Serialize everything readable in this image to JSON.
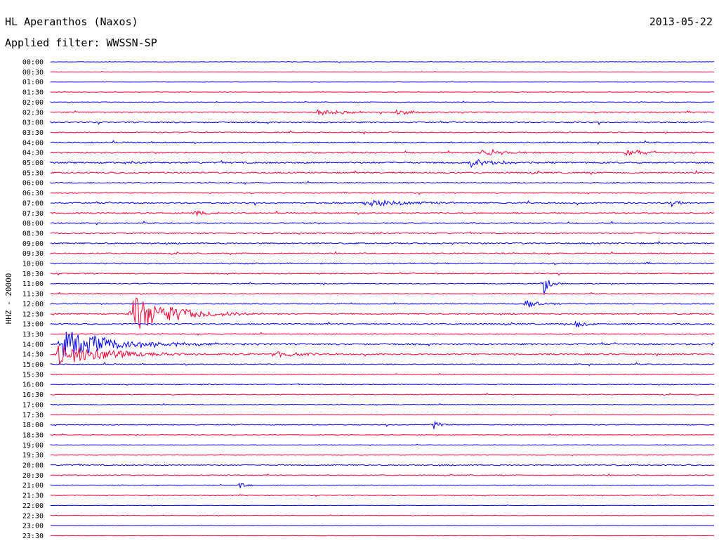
{
  "header": {
    "station": "HL Aperanthos (Naxos)",
    "date": "2013-05-22",
    "filter": "Applied filter: WWSSN-SP"
  },
  "chart_data": {
    "type": "line",
    "title": "HL Aperanthos (Naxos)",
    "subtitle": "Applied filter: WWSSN-SP",
    "ylabel": "HHZ - 20000",
    "xlabel": "",
    "grid": false,
    "colors": [
      "#0000ff",
      "#ff0033"
    ],
    "rows": [
      "00:00",
      "00:30",
      "01:00",
      "01:30",
      "02:00",
      "02:30",
      "03:00",
      "03:30",
      "04:00",
      "04:30",
      "05:00",
      "05:30",
      "06:00",
      "06:30",
      "07:00",
      "07:30",
      "08:00",
      "08:30",
      "09:00",
      "09:30",
      "10:00",
      "10:30",
      "11:00",
      "11:30",
      "12:00",
      "12:30",
      "13:00",
      "13:30",
      "14:00",
      "14:30",
      "15:00",
      "15:30",
      "16:00",
      "16:30",
      "17:00",
      "17:30",
      "18:00",
      "18:30",
      "19:00",
      "19:30",
      "20:00",
      "20:30",
      "21:00",
      "21:30",
      "22:00",
      "22:30",
      "23:00",
      "23:30"
    ],
    "noise_level": [
      0.4,
      0.3,
      0.3,
      0.4,
      0.6,
      0.9,
      1.0,
      0.8,
      1.0,
      1.2,
      1.3,
      1.2,
      1.0,
      0.8,
      1.0,
      1.0,
      1.0,
      1.0,
      1.1,
      1.0,
      1.1,
      0.8,
      0.7,
      0.6,
      0.8,
      1.0,
      1.0,
      0.9,
      1.3,
      1.1,
      0.9,
      0.6,
      0.7,
      0.7,
      0.6,
      0.5,
      0.7,
      0.5,
      0.5,
      0.5,
      0.9,
      0.7,
      0.6,
      0.6,
      0.3,
      0.4,
      0.3,
      0.3
    ],
    "events": [
      {
        "row": 5,
        "minute": 12.0,
        "amp": 5,
        "dur": 2.0
      },
      {
        "row": 5,
        "minute": 15.6,
        "amp": 5,
        "dur": 1.0
      },
      {
        "row": 9,
        "minute": 19.5,
        "amp": 6,
        "dur": 1.5
      },
      {
        "row": 9,
        "minute": 26.0,
        "amp": 6,
        "dur": 1.5
      },
      {
        "row": 10,
        "minute": 19.0,
        "amp": 6,
        "dur": 2.0
      },
      {
        "row": 14,
        "minute": 14.2,
        "amp": 5,
        "dur": 4.0
      },
      {
        "row": 14,
        "minute": 28.0,
        "amp": 9,
        "dur": 0.5
      },
      {
        "row": 15,
        "minute": 6.5,
        "amp": 5,
        "dur": 1.0
      },
      {
        "row": 22,
        "minute": 22.3,
        "amp": 16,
        "dur": 0.4
      },
      {
        "row": 24,
        "minute": 21.4,
        "amp": 7,
        "dur": 1.0
      },
      {
        "row": 25,
        "minute": 3.7,
        "amp": 26,
        "dur": 3.0
      },
      {
        "row": 26,
        "minute": 23.7,
        "amp": 7,
        "dur": 0.7
      },
      {
        "row": 28,
        "minute": 0.5,
        "amp": 20,
        "dur": 4.0
      },
      {
        "row": 28,
        "minute": 30.0,
        "amp": 18,
        "dur": 0.4
      },
      {
        "row": 29,
        "minute": 0.3,
        "amp": 16,
        "dur": 4.0
      },
      {
        "row": 29,
        "minute": 10.0,
        "amp": 5,
        "dur": 2.0
      },
      {
        "row": 36,
        "minute": 17.3,
        "amp": 8,
        "dur": 0.5
      },
      {
        "row": 42,
        "minute": 8.5,
        "amp": 6,
        "dur": 0.5
      }
    ]
  }
}
